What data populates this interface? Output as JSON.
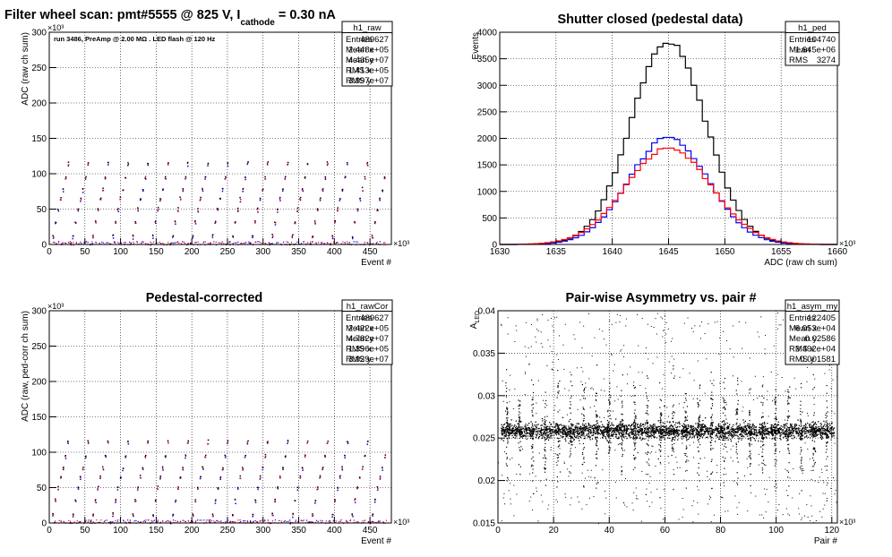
{
  "chart_data": [
    {
      "type": "scatter",
      "title": "Filter wheel scan: pmt#5555 @   825 V, I",
      "title_sub": "cathode",
      "title_tail": " = 0.30 nA",
      "annotation": "run 3486, PreAmp @ 2.00 MΩ . LED flash @  120 Hz",
      "ylabel": "ADC (raw ch sum)",
      "xlabel": "Event #",
      "x_exponent": "×10³",
      "y_exponent": "×10³",
      "xlim": [
        0,
        480
      ],
      "ylim": [
        0,
        300
      ],
      "x_ticks": [
        "0",
        "50",
        "100",
        "150",
        "200",
        "250",
        "300",
        "350",
        "400",
        "450"
      ],
      "y_ticks": [
        "0",
        "50",
        "100",
        "150",
        "200",
        "250",
        "300"
      ],
      "grid": true,
      "stats": {
        "name": "h1_raw",
        "rows": [
          [
            "Entries",
            "489627"
          ],
          [
            "Mean x",
            "2.448e+05"
          ],
          [
            "Mean y",
            "4.435e+07"
          ],
          [
            "RMS x",
            "1.413e+05"
          ],
          [
            "RMS y",
            "3.997e+07"
          ]
        ]
      },
      "levels": [
        0,
        12,
        32,
        50,
        65,
        78,
        95,
        115
      ],
      "step_period": 28,
      "x_end": 470,
      "colors": {
        "red": "#ff0000",
        "blue": "#0000ff",
        "black": "#000000"
      }
    },
    {
      "type": "line",
      "title": "Shutter closed (pedestal data)",
      "ylabel": "Events",
      "xlabel": "ADC (raw ch sum)",
      "x_exponent": "×10³",
      "xlim": [
        1630,
        1660
      ],
      "ylim": [
        0,
        4000
      ],
      "x_ticks": [
        "1630",
        "1635",
        "1640",
        "1645",
        "1650",
        "1655",
        "1660"
      ],
      "y_ticks": [
        "0",
        "500",
        "1000",
        "1500",
        "2000",
        "2500",
        "3000",
        "3500",
        "4000"
      ],
      "grid": true,
      "stats": {
        "name": "h1_ped",
        "rows": [
          [
            "Entries",
            "104740"
          ],
          [
            "Mean",
            "1.645e+06"
          ],
          [
            "RMS",
            "3274"
          ]
        ]
      },
      "series": [
        {
          "color": "#000000",
          "mean": 1645,
          "sigma": 3.3,
          "peak": 3850
        },
        {
          "color": "#0000ff",
          "mean": 1645,
          "sigma": 3.5,
          "peak": 2020
        },
        {
          "color": "#ff0000",
          "mean": 1645,
          "sigma": 3.8,
          "peak": 1820
        }
      ]
    },
    {
      "type": "scatter",
      "title": "Pedestal-corrected",
      "ylabel": "ADC (raw, ped-corr ch sum)",
      "xlabel": "Event #",
      "x_exponent": "×10³",
      "y_exponent": "×10³",
      "xlim": [
        0,
        480
      ],
      "ylim": [
        0,
        300
      ],
      "x_ticks": [
        "0",
        "50",
        "100",
        "150",
        "200",
        "250",
        "300",
        "350",
        "400",
        "450"
      ],
      "y_ticks": [
        "0",
        "50",
        "100",
        "150",
        "200",
        "250",
        "300"
      ],
      "grid": true,
      "stats": {
        "name": "h1_rawCor",
        "rows": [
          [
            "Entries",
            "489627"
          ],
          [
            "Mean x",
            "2.422e+05"
          ],
          [
            "Mean y",
            "4.782e+07"
          ],
          [
            "RMS x",
            "1.396e+05"
          ],
          [
            "RMS y",
            "3.929e+07"
          ]
        ]
      },
      "levels": [
        0,
        12,
        32,
        50,
        65,
        78,
        95,
        115
      ],
      "step_period": 28,
      "x_end": 470,
      "colors": {
        "red": "#ff0000",
        "blue": "#0000ff",
        "black": "#000000"
      }
    },
    {
      "type": "scatter",
      "title": "Pair-wise Asymmetry vs. pair #",
      "ylabel": "A",
      "ylabel_sub": "LED",
      "xlabel": "Pair #",
      "x_exponent": "×10³",
      "xlim": [
        0,
        122
      ],
      "ylim": [
        0.015,
        0.04
      ],
      "x_ticks": [
        "0",
        "20",
        "40",
        "60",
        "80",
        "100",
        "120"
      ],
      "y_ticks": [
        "0.015",
        "0.02",
        "0.025",
        "0.03",
        "0.035",
        "0.04"
      ],
      "grid": true,
      "stats": {
        "name": "h1_asym_my",
        "rows": [
          [
            "Entries",
            "122405"
          ],
          [
            "Mean x",
            "6.053e+04"
          ],
          [
            "Mean y",
            "0.02586"
          ],
          [
            "RMS x",
            "3.492e+04"
          ],
          [
            "RMS y",
            "0.001581"
          ]
        ]
      },
      "band_center": 0.0259,
      "band_halfwidth": 0.0008,
      "spike_period": 4.6,
      "spike_max": 0.033
    }
  ]
}
